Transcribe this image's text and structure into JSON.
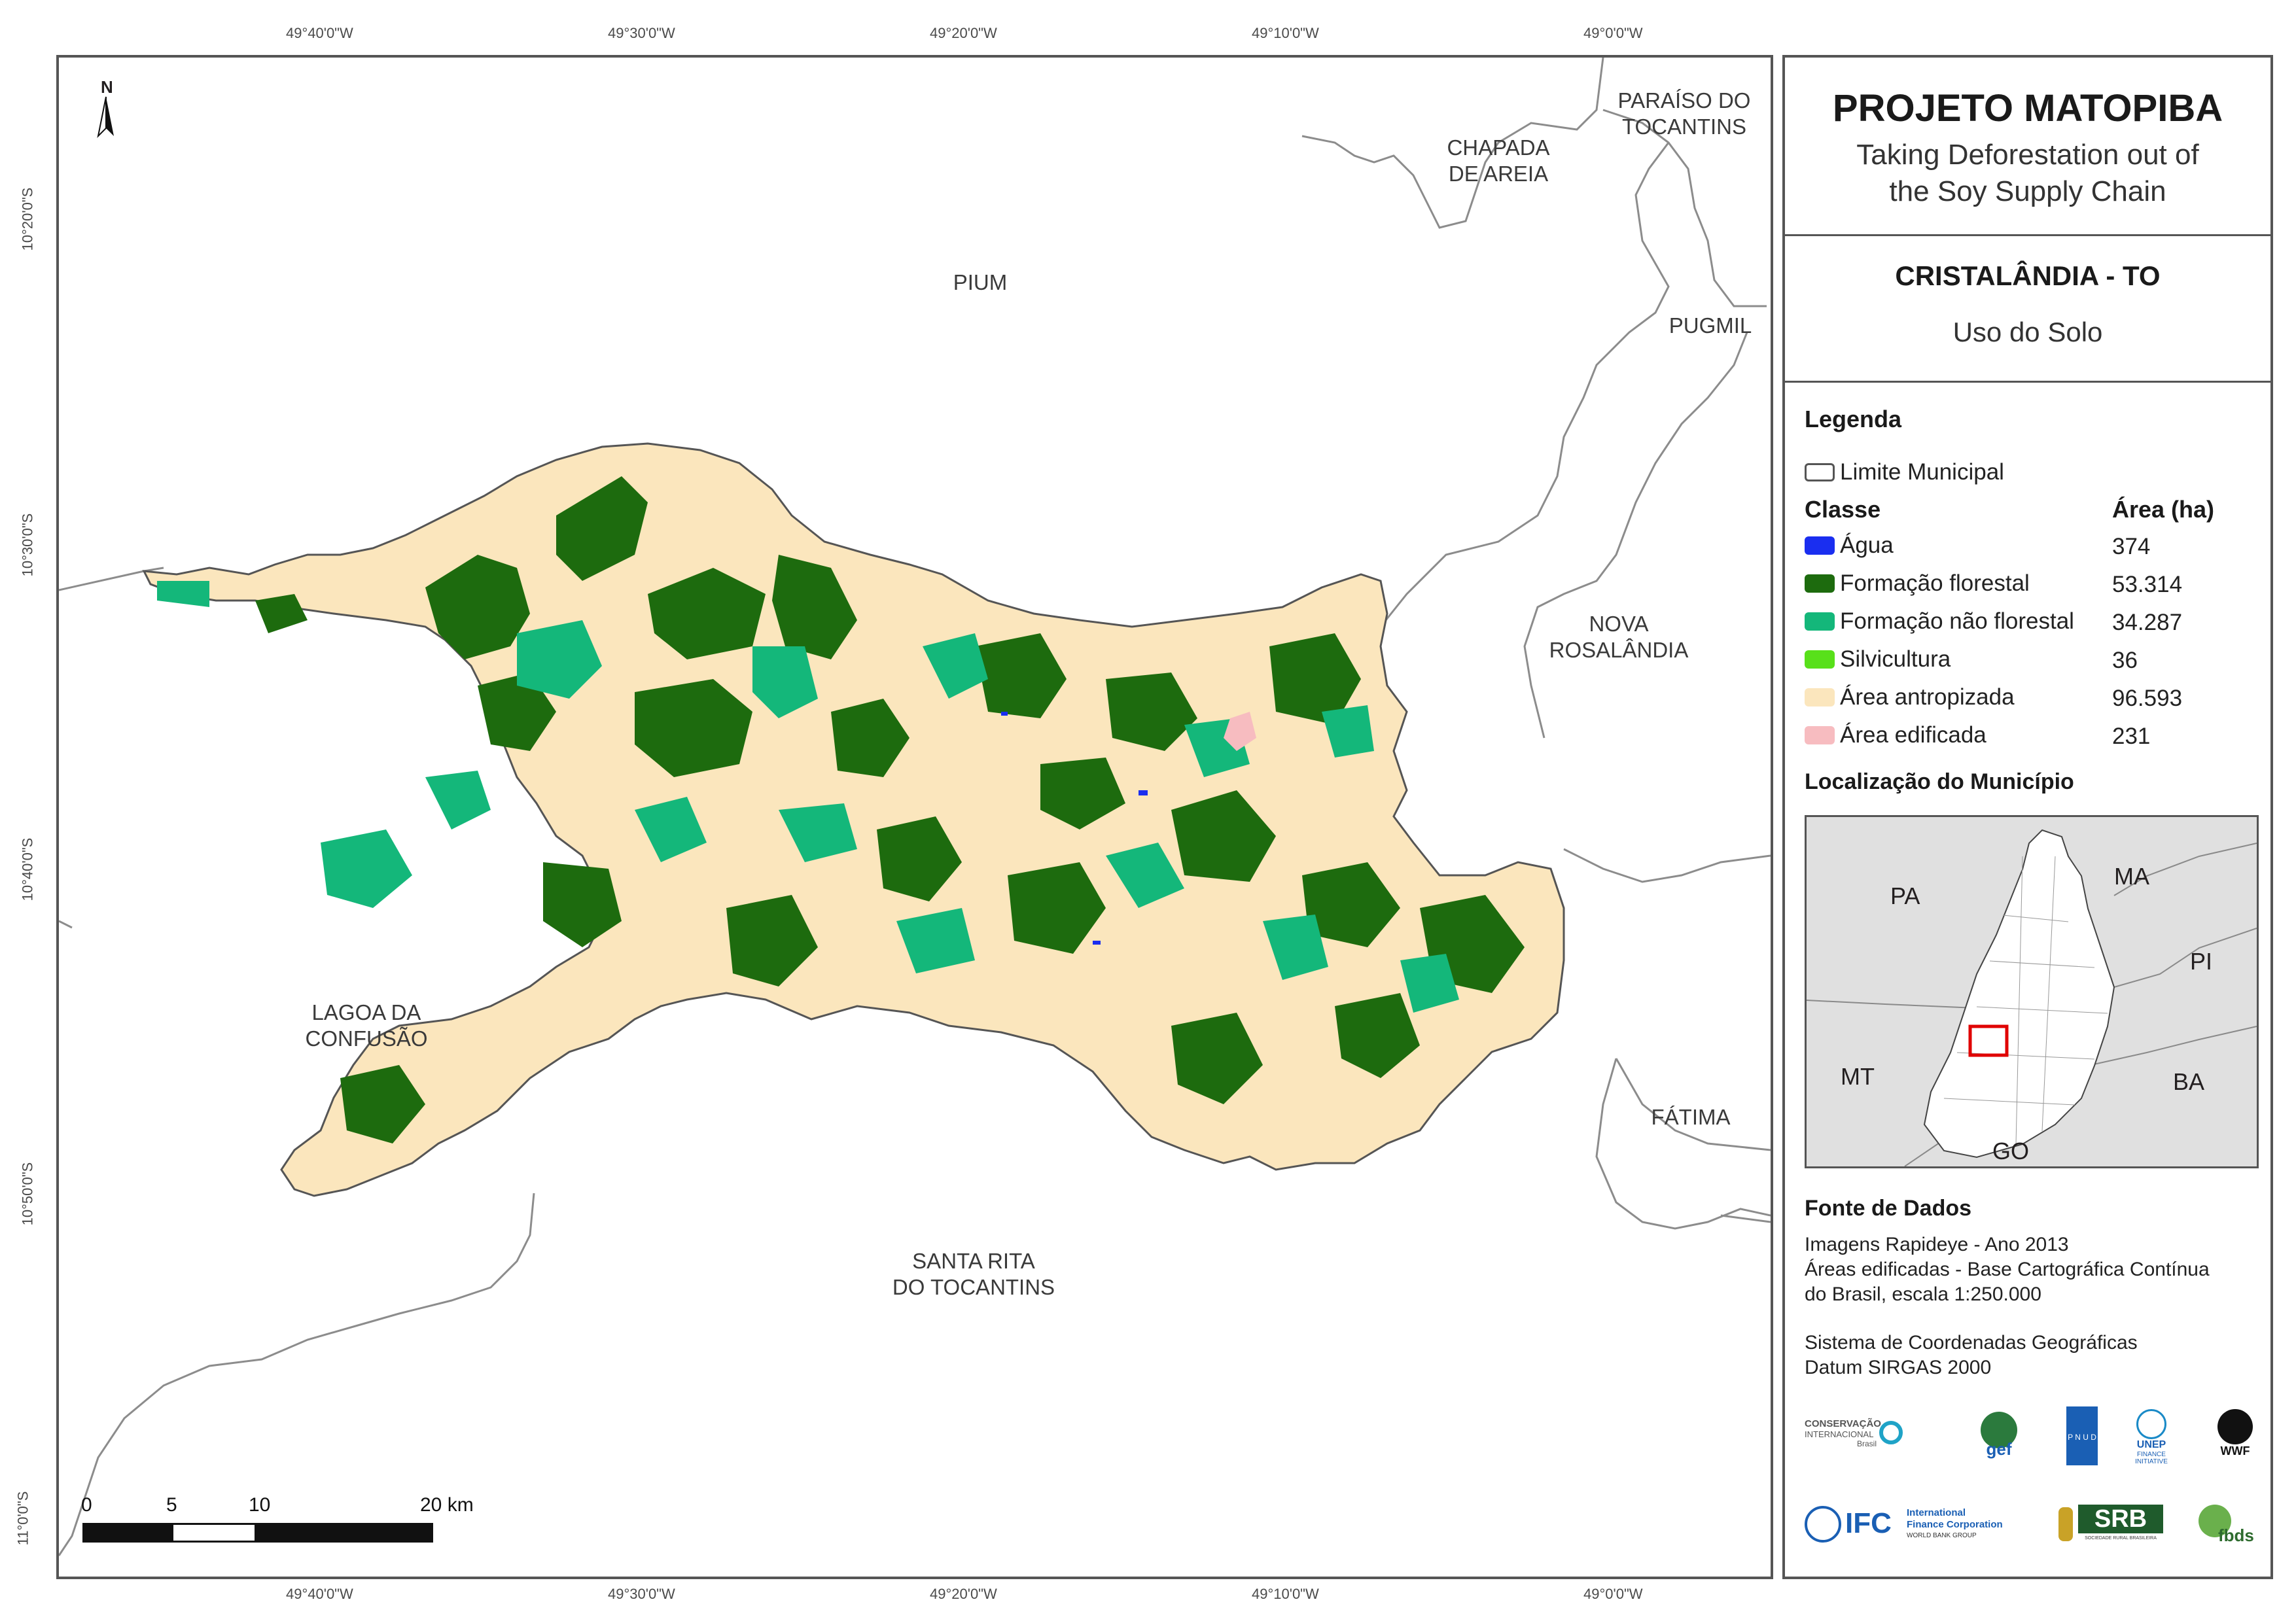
{
  "map": {
    "coords_top": [
      "49°40'0\"W",
      "49°30'0\"W",
      "49°20'0\"W",
      "49°10'0\"W",
      "49°0'0\"W"
    ],
    "coords_bottom": [
      "49°40'0\"W",
      "49°30'0\"W",
      "49°20'0\"W",
      "49°10'0\"W",
      "49°0'0\"W"
    ],
    "coords_left": [
      "10°20'0\"S",
      "10°30'0\"S",
      "10°40'0\"S",
      "10°50'0\"S",
      "11°0'0\"S"
    ],
    "north_label": "N",
    "municipalities": {
      "paraiso": [
        "PARAÍSO DO",
        "TOCANTINS"
      ],
      "chapada": [
        "CHAPADA",
        "DE AREIA"
      ],
      "pium": [
        "PIUM"
      ],
      "pugmil": [
        "PUGMIL"
      ],
      "nova": [
        "NOVA",
        "ROSALÂNDIA"
      ],
      "lagoa": [
        "LAGOA DA",
        "CONFUSÃO"
      ],
      "fatima": [
        "FÁTIMA"
      ],
      "santa": [
        "SANTA RITA",
        "DO TOCANTINS"
      ]
    },
    "scale": {
      "labels": [
        "0",
        "5",
        "10",
        "20 km"
      ]
    }
  },
  "panel": {
    "title": "PROJETO MATOPIBA",
    "subtitle_line1": "Taking Deforestation out of",
    "subtitle_line2": "the Soy Supply Chain",
    "municipio": "CRISTALÂNDIA - TO",
    "theme": "Uso do Solo",
    "legend_title": "Legenda",
    "limite_label": "Limite Municipal",
    "classe_header": "Classe",
    "area_header": "Área (ha)",
    "classes": [
      {
        "label": "Água",
        "area": "374",
        "color": "#1a2ef0"
      },
      {
        "label": "Formação florestal",
        "area": "53.314",
        "color": "#1d6b0e"
      },
      {
        "label": "Formação não florestal",
        "area": "34.287",
        "color": "#14b77a"
      },
      {
        "label": "Silvicultura",
        "area": "36",
        "color": "#58e01a"
      },
      {
        "label": "Área antropizada",
        "area": "96.593",
        "color": "#fbe6bd"
      },
      {
        "label": "Área edificada",
        "area": "231",
        "color": "#f7bcc0"
      }
    ],
    "location_title": "Localização do Município",
    "states": {
      "PA": "PA",
      "MA": "MA",
      "PI": "PI",
      "MT": "MT",
      "BA": "BA",
      "GO": "GO"
    },
    "source_title": "Fonte de Dados",
    "source_lines": [
      "Imagens Rapideye - Ano 2013",
      "Áreas edificadas - Base Cartográfica Contínua",
      "do Brasil, escala 1:250.000",
      "",
      "Sistema de Coordenadas Geográficas",
      "Datum SIRGAS 2000"
    ],
    "logos": {
      "ci_line1": "CONSERVAÇÃO",
      "ci_line2": "INTERNACIONAL",
      "ci_line3": "Brasil",
      "gef": "gef",
      "undp": "P N U D",
      "unep": "UNEP",
      "unep_sub1": "FINANCE",
      "unep_sub2": "INITIATIVE",
      "wwf": "WWF",
      "ifc": "IFC",
      "ifc_line1": "International",
      "ifc_line2": "Finance Corporation",
      "ifc_line3": "WORLD BANK GROUP",
      "srb": "SRB",
      "srb_sub": "SOCIEDADE RURAL BRASILEIRA",
      "fbds": "fbds"
    }
  }
}
